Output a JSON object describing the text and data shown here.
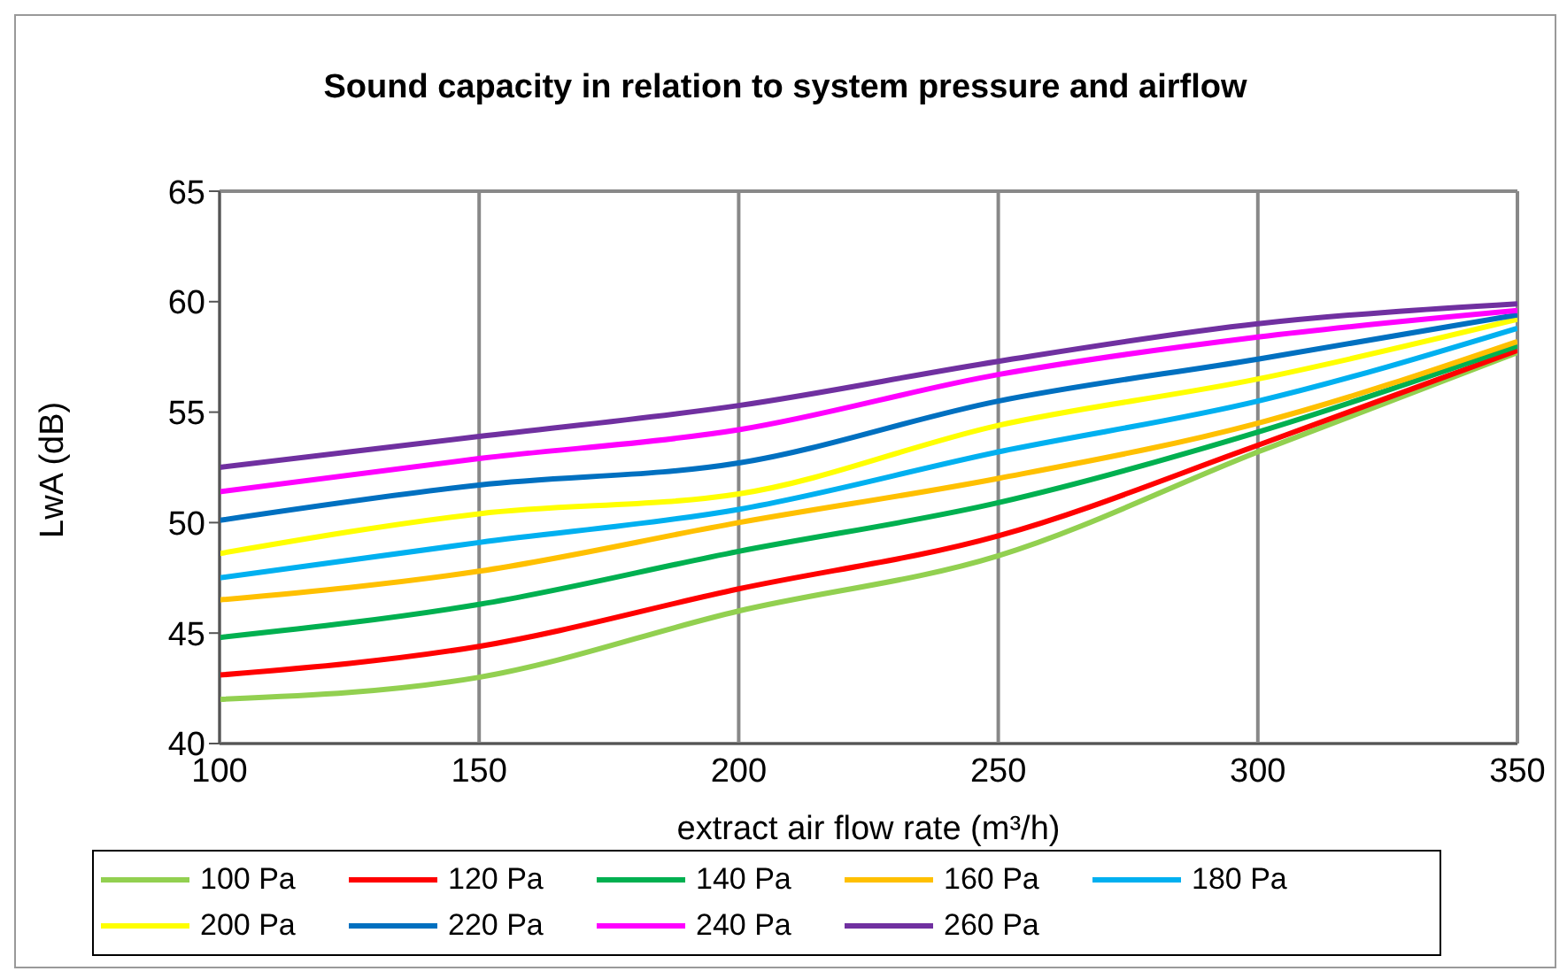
{
  "chart_data": {
    "type": "line",
    "title": "Sound capacity in relation to system pressure and airflow",
    "xlabel": "extract air flow rate (m³/h)",
    "ylabel": "LwA (dB)",
    "x": [
      100,
      150,
      200,
      250,
      300,
      350
    ],
    "xlim": [
      100,
      350
    ],
    "xticks": [
      100,
      150,
      200,
      250,
      300,
      350
    ],
    "ylim": [
      40,
      65
    ],
    "yticks": [
      40,
      45,
      50,
      55,
      60,
      65
    ],
    "grid": true,
    "legend": "bottom",
    "marker": "none",
    "line_style": "solid",
    "series": [
      {
        "name": "100 Pa",
        "color": "#92d050",
        "values": [
          42,
          43,
          46,
          48.5,
          53.2,
          57.7
        ]
      },
      {
        "name": "120 Pa",
        "color": "#ff0000",
        "values": [
          43.1,
          44.4,
          47,
          49.4,
          53.5,
          57.8
        ]
      },
      {
        "name": "140 Pa",
        "color": "#00b050",
        "values": [
          44.8,
          46.3,
          48.7,
          50.9,
          54.1,
          58
        ]
      },
      {
        "name": "160 Pa",
        "color": "#ffc000",
        "values": [
          46.5,
          47.8,
          50,
          52,
          54.5,
          58.2
        ]
      },
      {
        "name": "180 Pa",
        "color": "#00b0f0",
        "values": [
          47.5,
          49.1,
          50.6,
          53.2,
          55.5,
          58.8
        ]
      },
      {
        "name": "200 Pa",
        "color": "#ffff00",
        "values": [
          48.6,
          50.4,
          51.3,
          54.4,
          56.5,
          59.2
        ]
      },
      {
        "name": "220 Pa",
        "color": "#0070c0",
        "values": [
          50.1,
          51.7,
          52.7,
          55.5,
          57.4,
          59.4
        ]
      },
      {
        "name": "240 Pa",
        "color": "#ff00ff",
        "values": [
          51.4,
          52.9,
          54.2,
          56.7,
          58.4,
          59.6
        ]
      },
      {
        "name": "260 Pa",
        "color": "#7030a0",
        "values": [
          52.5,
          53.9,
          55.3,
          57.3,
          59,
          59.9
        ]
      }
    ]
  }
}
